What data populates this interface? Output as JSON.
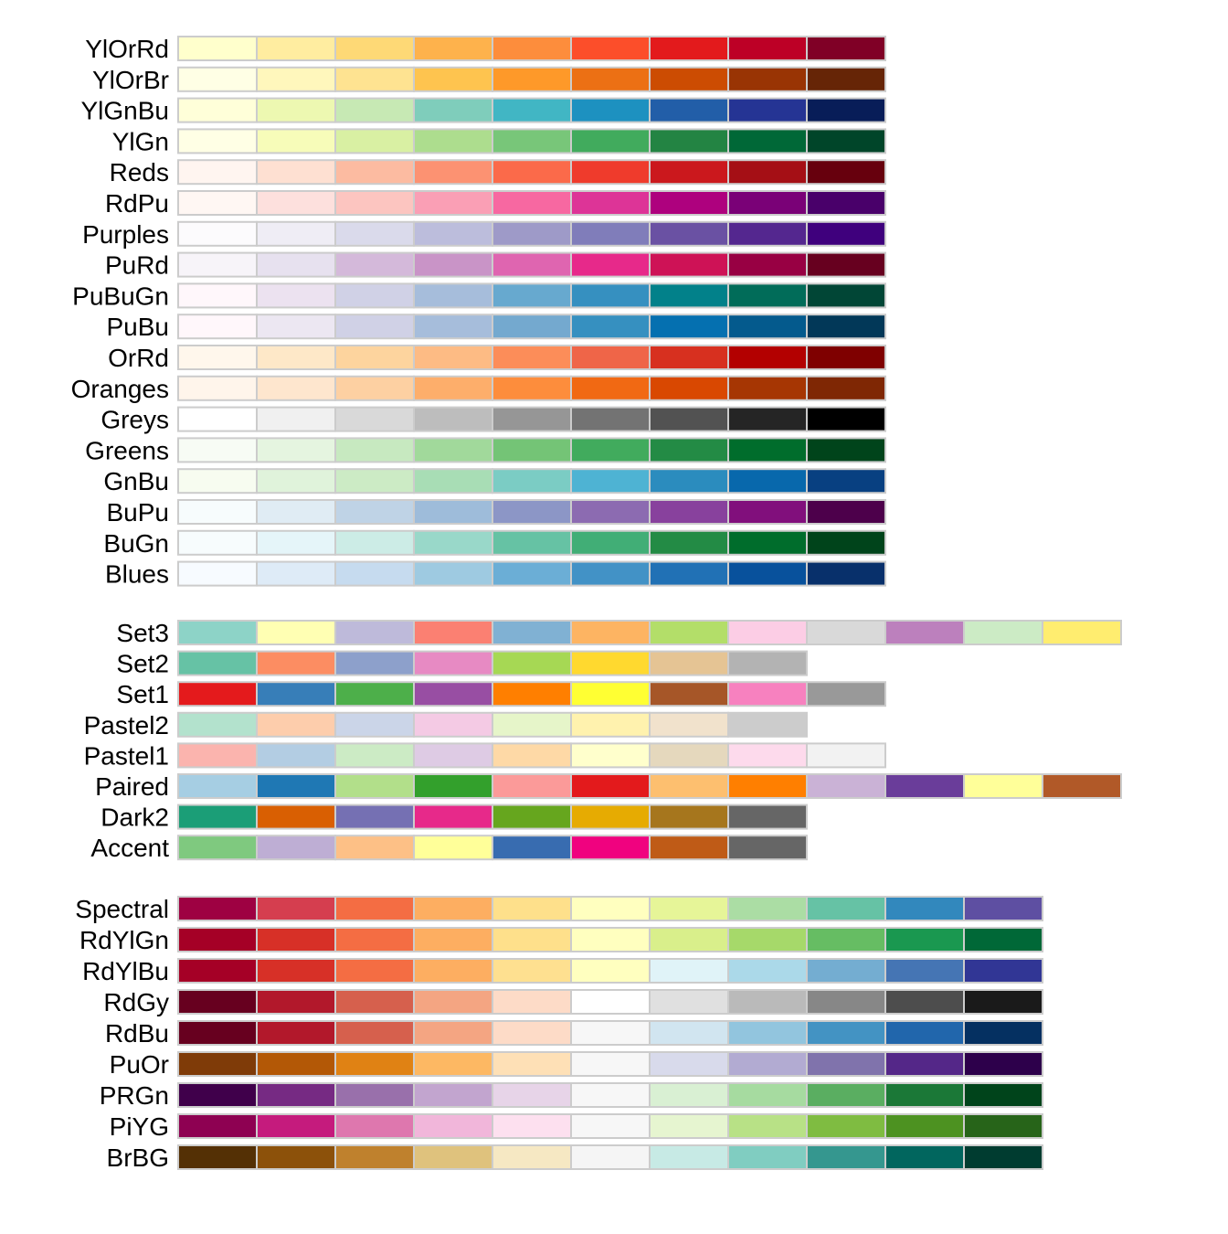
{
  "chart_data": {
    "type": "table",
    "groups": [
      {
        "name": "",
        "palettes": [
          {
            "name": "YlOrRd",
            "colors": [
              "#ffffcc",
              "#ffeda0",
              "#fed976",
              "#feb24c",
              "#fd8d3c",
              "#fc4e2a",
              "#e31a1c",
              "#bd0026",
              "#800026"
            ]
          },
          {
            "name": "YlOrBr",
            "colors": [
              "#ffffe5",
              "#fff7bc",
              "#fee391",
              "#fec44f",
              "#fe9929",
              "#ec7014",
              "#cc4c02",
              "#993404",
              "#662506"
            ]
          },
          {
            "name": "YlGnBu",
            "colors": [
              "#ffffd9",
              "#edf8b1",
              "#c7e9b4",
              "#7fcdbb",
              "#41b6c4",
              "#1d91c0",
              "#225ea8",
              "#253494",
              "#081d58"
            ]
          },
          {
            "name": "YlGn",
            "colors": [
              "#ffffe5",
              "#f7fcb9",
              "#d9f0a3",
              "#addd8e",
              "#78c679",
              "#41ab5d",
              "#238443",
              "#006837",
              "#004529"
            ]
          },
          {
            "name": "Reds",
            "colors": [
              "#fff5f0",
              "#fee0d2",
              "#fcbba1",
              "#fc9272",
              "#fb6a4a",
              "#ef3b2c",
              "#cb181d",
              "#a50f15",
              "#67000d"
            ]
          },
          {
            "name": "RdPu",
            "colors": [
              "#fff7f3",
              "#fde0dd",
              "#fcc5c0",
              "#fa9fb5",
              "#f768a1",
              "#dd3497",
              "#ae017e",
              "#7a0177",
              "#49006a"
            ]
          },
          {
            "name": "Purples",
            "colors": [
              "#fcfbfd",
              "#efedf5",
              "#dadaeb",
              "#bcbddc",
              "#9e9ac8",
              "#807dba",
              "#6a51a3",
              "#54278f",
              "#3f007d"
            ]
          },
          {
            "name": "PuRd",
            "colors": [
              "#f7f4f9",
              "#e7e1ef",
              "#d4b9da",
              "#c994c7",
              "#df65b0",
              "#e7298a",
              "#ce1256",
              "#980043",
              "#67001f"
            ]
          },
          {
            "name": "PuBuGn",
            "colors": [
              "#fff7fb",
              "#ece2f0",
              "#d0d1e6",
              "#a6bddb",
              "#67a9cf",
              "#3690c0",
              "#02818a",
              "#016c59",
              "#014636"
            ]
          },
          {
            "name": "PuBu",
            "colors": [
              "#fff7fb",
              "#ece7f2",
              "#d0d1e6",
              "#a6bddb",
              "#74a9cf",
              "#3690c0",
              "#0570b0",
              "#045a8d",
              "#023858"
            ]
          },
          {
            "name": "OrRd",
            "colors": [
              "#fff7ec",
              "#fee8c8",
              "#fdd49e",
              "#fdbb84",
              "#fc8d59",
              "#ef6548",
              "#d7301f",
              "#b30000",
              "#7f0000"
            ]
          },
          {
            "name": "Oranges",
            "colors": [
              "#fff5eb",
              "#fee6ce",
              "#fdd0a2",
              "#fdae6b",
              "#fd8d3c",
              "#f16913",
              "#d94801",
              "#a63603",
              "#7f2704"
            ]
          },
          {
            "name": "Greys",
            "colors": [
              "#ffffff",
              "#f0f0f0",
              "#d9d9d9",
              "#bdbdbd",
              "#969696",
              "#737373",
              "#525252",
              "#252525",
              "#000000"
            ]
          },
          {
            "name": "Greens",
            "colors": [
              "#f7fcf5",
              "#e5f5e0",
              "#c7e9c0",
              "#a1d99b",
              "#74c476",
              "#41ab5d",
              "#238b45",
              "#006d2c",
              "#00441b"
            ]
          },
          {
            "name": "GnBu",
            "colors": [
              "#f7fcf0",
              "#e0f3db",
              "#ccebc5",
              "#a8ddb5",
              "#7bccc4",
              "#4eb3d3",
              "#2b8cbe",
              "#0868ac",
              "#084081"
            ]
          },
          {
            "name": "BuPu",
            "colors": [
              "#f7fcfd",
              "#e0ecf4",
              "#bfd3e6",
              "#9ebcda",
              "#8c96c6",
              "#8c6bb1",
              "#88419d",
              "#810f7c",
              "#4d004b"
            ]
          },
          {
            "name": "BuGn",
            "colors": [
              "#f7fcfd",
              "#e5f5f9",
              "#ccece6",
              "#99d8c9",
              "#66c2a4",
              "#41ae76",
              "#238b45",
              "#006d2c",
              "#00441b"
            ]
          },
          {
            "name": "Blues",
            "colors": [
              "#f7fbff",
              "#deebf7",
              "#c6dbef",
              "#9ecae1",
              "#6baed6",
              "#4292c6",
              "#2171b5",
              "#08519c",
              "#08306b"
            ]
          }
        ]
      },
      {
        "name": "",
        "palettes": [
          {
            "name": "Set3",
            "colors": [
              "#8dd3c7",
              "#ffffb3",
              "#bebada",
              "#fb8072",
              "#80b1d3",
              "#fdb462",
              "#b3de69",
              "#fccde5",
              "#d9d9d9",
              "#bc80bd",
              "#ccebc5",
              "#ffed6f"
            ]
          },
          {
            "name": "Set2",
            "colors": [
              "#66c2a5",
              "#fc8d62",
              "#8da0cb",
              "#e78ac3",
              "#a6d854",
              "#ffd92f",
              "#e5c494",
              "#b3b3b3"
            ]
          },
          {
            "name": "Set1",
            "colors": [
              "#e41a1c",
              "#377eb8",
              "#4daf4a",
              "#984ea3",
              "#ff7f00",
              "#ffff33",
              "#a65628",
              "#f781bf",
              "#999999"
            ]
          },
          {
            "name": "Pastel2",
            "colors": [
              "#b3e2cd",
              "#fdcdac",
              "#cbd5e8",
              "#f4cae4",
              "#e6f5c9",
              "#fff2ae",
              "#f1e2cc",
              "#cccccc"
            ]
          },
          {
            "name": "Pastel1",
            "colors": [
              "#fbb4ae",
              "#b3cde3",
              "#ccebc5",
              "#decbe4",
              "#fed9a6",
              "#ffffcc",
              "#e5d8bd",
              "#fddaec",
              "#f2f2f2"
            ]
          },
          {
            "name": "Paired",
            "colors": [
              "#a6cee3",
              "#1f78b4",
              "#b2df8a",
              "#33a02c",
              "#fb9a99",
              "#e31a1c",
              "#fdbf6f",
              "#ff7f00",
              "#cab2d6",
              "#6a3d9a",
              "#ffff99",
              "#b15928"
            ]
          },
          {
            "name": "Dark2",
            "colors": [
              "#1b9e77",
              "#d95f02",
              "#7570b3",
              "#e7298a",
              "#66a61e",
              "#e6ab02",
              "#a6761d",
              "#666666"
            ]
          },
          {
            "name": "Accent",
            "colors": [
              "#7fc97f",
              "#beaed4",
              "#fdc086",
              "#ffff99",
              "#386cb0",
              "#f0027f",
              "#bf5b17",
              "#666666"
            ]
          }
        ]
      },
      {
        "name": "",
        "palettes": [
          {
            "name": "Spectral",
            "colors": [
              "#9e0142",
              "#d53e4f",
              "#f46d43",
              "#fdae61",
              "#fee08b",
              "#ffffbf",
              "#e6f598",
              "#abdda4",
              "#66c2a5",
              "#3288bd",
              "#5e4fa2"
            ]
          },
          {
            "name": "RdYlGn",
            "colors": [
              "#a50026",
              "#d73027",
              "#f46d43",
              "#fdae61",
              "#fee08b",
              "#ffffbf",
              "#d9ef8b",
              "#a6d96a",
              "#66bd63",
              "#1a9850",
              "#006837"
            ]
          },
          {
            "name": "RdYlBu",
            "colors": [
              "#a50026",
              "#d73027",
              "#f46d43",
              "#fdae61",
              "#fee090",
              "#ffffbf",
              "#e0f3f8",
              "#abd9e9",
              "#74add1",
              "#4575b4",
              "#313695"
            ]
          },
          {
            "name": "RdGy",
            "colors": [
              "#67001f",
              "#b2182b",
              "#d6604d",
              "#f4a582",
              "#fddbc7",
              "#ffffff",
              "#e0e0e0",
              "#bababa",
              "#878787",
              "#4d4d4d",
              "#1a1a1a"
            ]
          },
          {
            "name": "RdBu",
            "colors": [
              "#67001f",
              "#b2182b",
              "#d6604d",
              "#f4a582",
              "#fddbc7",
              "#f7f7f7",
              "#d1e5f0",
              "#92c5de",
              "#4393c3",
              "#2166ac",
              "#053061"
            ]
          },
          {
            "name": "PuOr",
            "colors": [
              "#7f3b08",
              "#b35806",
              "#e08214",
              "#fdb863",
              "#fee0b6",
              "#f7f7f7",
              "#d8daeb",
              "#b2abd2",
              "#8073ac",
              "#542788",
              "#2d004b"
            ]
          },
          {
            "name": "PRGn",
            "colors": [
              "#40004b",
              "#762a83",
              "#9970ab",
              "#c2a5cf",
              "#e7d4e8",
              "#f7f7f7",
              "#d9f0d3",
              "#a6dba0",
              "#5aae61",
              "#1b7837",
              "#00441b"
            ]
          },
          {
            "name": "PiYG",
            "colors": [
              "#8e0152",
              "#c51b7d",
              "#de77ae",
              "#f1b6da",
              "#fde0ef",
              "#f7f7f7",
              "#e6f5d0",
              "#b8e186",
              "#7fbc41",
              "#4d9221",
              "#276419"
            ]
          },
          {
            "name": "BrBG",
            "colors": [
              "#543005",
              "#8c510a",
              "#bf812d",
              "#dfc27d",
              "#f6e8c3",
              "#f5f5f5",
              "#c7eae5",
              "#80cdc1",
              "#35978f",
              "#01665e",
              "#003c30"
            ]
          }
        ]
      }
    ]
  }
}
